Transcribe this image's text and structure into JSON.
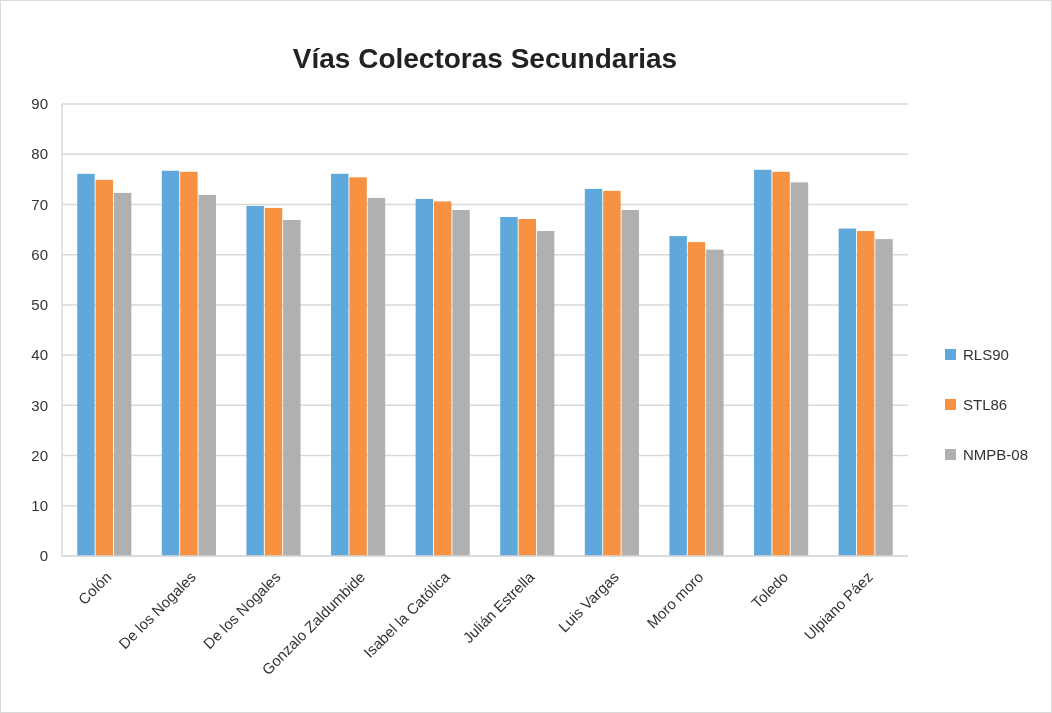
{
  "chart_data": {
    "type": "bar",
    "title": "Vías Colectoras Secundarias",
    "categories": [
      "Colón",
      "De los Nogales",
      "De los Nogales",
      "Gonzalo Zaldumbide",
      "Isabel la Católica",
      "Julián Estrella",
      "Luis Vargas",
      "Moro moro",
      "Toledo",
      "Ulpiano Páez"
    ],
    "series": [
      {
        "name": "RLS90",
        "color": "#5fa8dc",
        "values": [
          76.1,
          76.7,
          69.7,
          76.1,
          71.1,
          67.5,
          73.1,
          63.7,
          76.9,
          65.2
        ]
      },
      {
        "name": "STL86",
        "color": "#f79242",
        "values": [
          74.9,
          76.5,
          69.3,
          75.4,
          70.6,
          67.1,
          72.7,
          62.5,
          76.5,
          64.7
        ]
      },
      {
        "name": "NMPB-08",
        "color": "#b0b0b0",
        "values": [
          72.3,
          71.9,
          66.9,
          71.3,
          68.9,
          64.7,
          68.9,
          61.0,
          74.4,
          63.1
        ]
      }
    ],
    "ylim": [
      0,
      90
    ],
    "yticks": [
      0,
      10,
      20,
      30,
      40,
      50,
      60,
      70,
      80,
      90
    ],
    "grid": "y",
    "legend": "right"
  }
}
